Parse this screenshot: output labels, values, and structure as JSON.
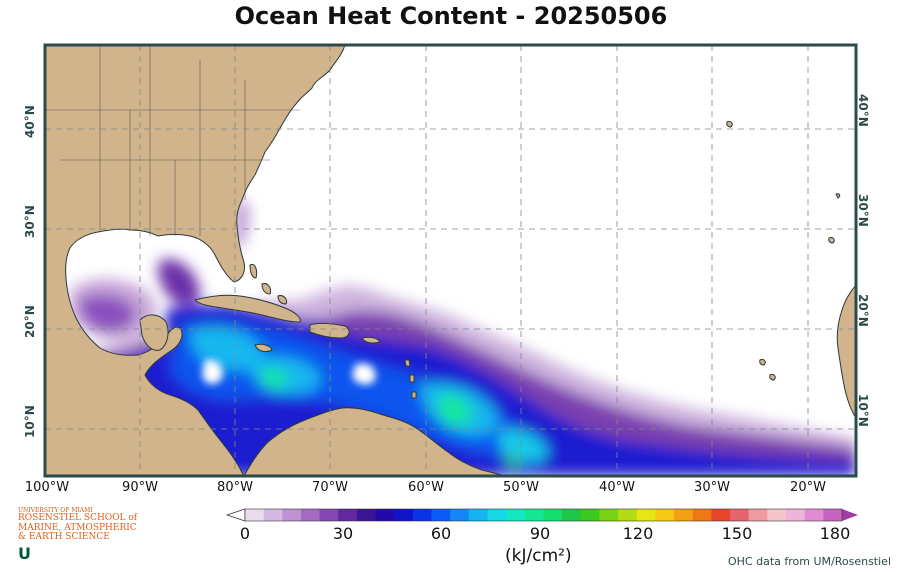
{
  "title": "Ocean Heat Content - 20250506",
  "map": {
    "lat_labels_left": [
      "40°N",
      "30°N",
      "20°N",
      "10°N"
    ],
    "lat_labels_right": [
      "40°N",
      "30°N",
      "20°N",
      "10°N"
    ],
    "lon_labels": [
      "100°W",
      "90°W",
      "80°W",
      "70°W",
      "60°W",
      "50°W",
      "40°W",
      "30°W",
      "20°W"
    ],
    "colors": {
      "land": "#d2b48c",
      "ocean_blank": "#ffffff",
      "frame": "#2b4a4a",
      "coast": "#2b3a3a"
    }
  },
  "colorbar": {
    "min": 0,
    "max": 180,
    "ticks": [
      "0",
      "30",
      "60",
      "90",
      "120",
      "150",
      "180"
    ],
    "units": "(kJ/cm²)",
    "colors": [
      "#e9dcef",
      "#d6b9e2",
      "#bf92d3",
      "#a36ac2",
      "#8446b0",
      "#6228a0",
      "#3c1496",
      "#2208a8",
      "#0f14c8",
      "#0a32e6",
      "#0a5af5",
      "#1486f5",
      "#14b4f0",
      "#14d8e6",
      "#14e6c0",
      "#14e696",
      "#14dc6e",
      "#1ec846",
      "#3cc81e",
      "#7ad214",
      "#b4dc14",
      "#e6e614",
      "#f5c814",
      "#f5a014",
      "#f07814",
      "#e64628",
      "#e6646e",
      "#f09aa0",
      "#f5c4c8",
      "#f0b4dc",
      "#e08cd2",
      "#c864c0"
    ]
  },
  "credit": "OHC data from UM/Rosenstiel",
  "logo": {
    "line1": "UNIVERSITY OF MIAMI",
    "line2": "ROSENSTIEL SCHOOL of",
    "line3": "MARINE, ATMOSPHERIC",
    "line4": "& EARTH SCIENCE",
    "mark": "U"
  }
}
